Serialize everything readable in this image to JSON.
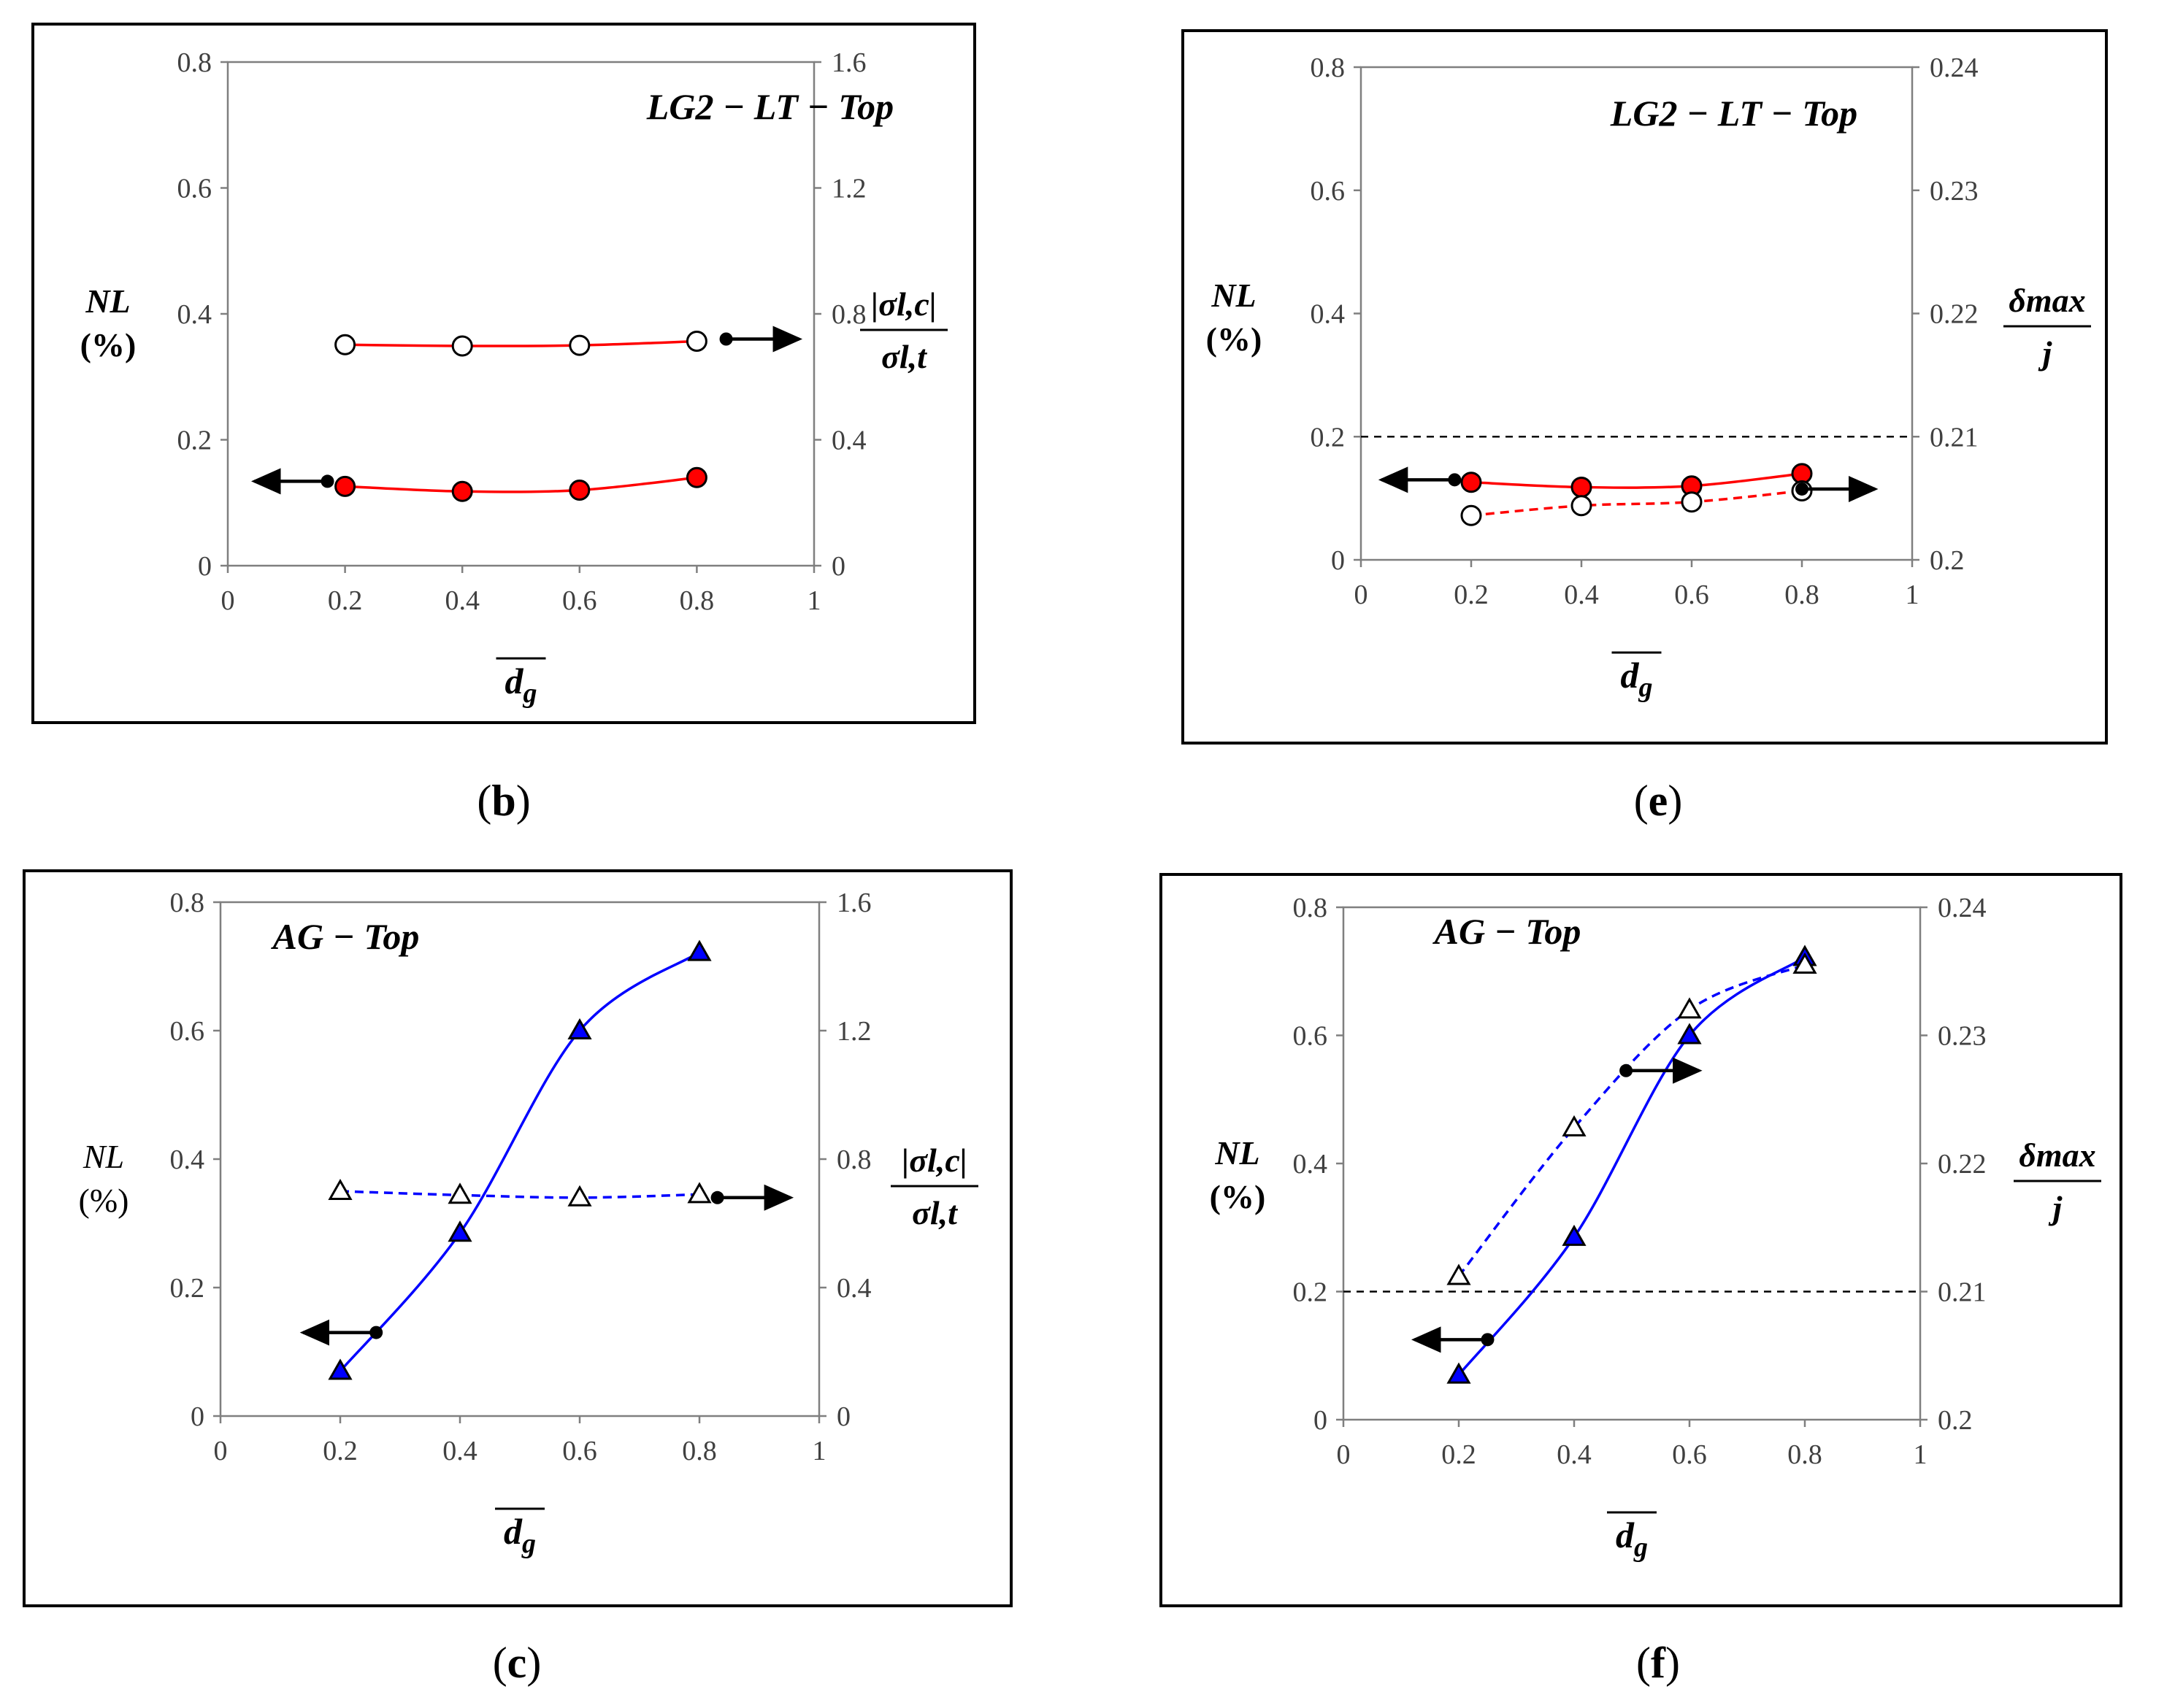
{
  "figure": {
    "panels": [
      "b",
      "e",
      "c",
      "f"
    ]
  },
  "chart_data": [
    {
      "id": "b",
      "type": "line",
      "panel_label": "(b)",
      "title": "LG2 − LT − Top",
      "xlabel": "d_g",
      "ylabel": "NL",
      "ylabel_unit": "(%)",
      "y2label_num": "|σl,c|",
      "y2label_den": "σl,t",
      "xlim": [
        0,
        1
      ],
      "ylim": [
        0,
        0.8
      ],
      "y2lim": [
        0,
        1.6
      ],
      "x_ticks": [
        "0",
        "0.2",
        "0.4",
        "0.6",
        "0.8",
        "1"
      ],
      "y_ticks": [
        "0",
        "0.2",
        "0.4",
        "0.6",
        "0.8"
      ],
      "y2_ticks": [
        "0",
        "0.4",
        "0.8",
        "1.2",
        "1.6"
      ],
      "ref_line": null,
      "series": [
        {
          "name": "NL",
          "axis": "left",
          "x": [
            0.2,
            0.4,
            0.6,
            0.8
          ],
          "values": [
            0.126,
            0.118,
            0.12,
            0.14
          ],
          "color": "#ff0000",
          "marker": "circle-filled",
          "dashed": false
        },
        {
          "name": "|σl,c|/σl,t",
          "axis": "right",
          "x": [
            0.2,
            0.4,
            0.6,
            0.8
          ],
          "values": [
            0.702,
            0.698,
            0.7,
            0.713
          ],
          "color": "#ff0000",
          "marker": "circle-open",
          "dashed": false
        }
      ],
      "arrows": [
        {
          "dir": "left",
          "x": 0.17,
          "y": 0.134
        },
        {
          "dir": "right",
          "x": 0.85,
          "y": 0.36
        }
      ]
    },
    {
      "id": "e",
      "type": "line",
      "panel_label": "(e)",
      "title": "LG2 − LT − Top",
      "xlabel": "d_g",
      "ylabel": "NL",
      "ylabel_unit": "(%)",
      "y2label_num": "δmax",
      "y2label_den": "j",
      "xlim": [
        0,
        1
      ],
      "ylim": [
        0,
        0.8
      ],
      "y2lim": [
        0.2,
        0.24
      ],
      "x_ticks": [
        "0",
        "0.2",
        "0.4",
        "0.6",
        "0.8",
        "1"
      ],
      "y_ticks": [
        "0",
        "0.2",
        "0.4",
        "0.6",
        "0.8"
      ],
      "y2_ticks": [
        "0.2",
        "0.21",
        "0.22",
        "0.23",
        "0.24"
      ],
      "ref_line": 0.2,
      "series": [
        {
          "name": "NL",
          "axis": "left",
          "x": [
            0.2,
            0.4,
            0.6,
            0.8
          ],
          "values": [
            0.126,
            0.118,
            0.12,
            0.14
          ],
          "color": "#ff0000",
          "marker": "circle-filled",
          "dashed": false
        },
        {
          "name": "δmax/j",
          "axis": "right",
          "x": [
            0.2,
            0.4,
            0.6,
            0.8
          ],
          "values": [
            0.2036,
            0.2044,
            0.2047,
            0.2056
          ],
          "color": "#ff0000",
          "marker": "circle-open",
          "dashed": true
        }
      ],
      "arrows": [
        {
          "dir": "left",
          "x": 0.17,
          "y": 0.13
        },
        {
          "dir": "right",
          "x": 0.8,
          "y": 0.115
        }
      ]
    },
    {
      "id": "c",
      "type": "line",
      "panel_label": "(c)",
      "title": "AG − Top",
      "xlabel": "d_g",
      "ylabel": "NL",
      "ylabel_unit": "(%)",
      "y2label_num": "|σl,c|",
      "y2label_den": "σl,t",
      "xlim": [
        0,
        1
      ],
      "ylim": [
        0,
        0.8
      ],
      "y2lim": [
        0,
        1.6
      ],
      "x_ticks": [
        "0",
        "0.2",
        "0.4",
        "0.6",
        "0.8",
        "1"
      ],
      "y_ticks": [
        "0",
        "0.2",
        "0.4",
        "0.6",
        "0.8"
      ],
      "y2_ticks": [
        "0",
        "0.4",
        "0.8",
        "1.2",
        "1.6"
      ],
      "ref_line": null,
      "series": [
        {
          "name": "NL",
          "axis": "left",
          "x": [
            0.2,
            0.4,
            0.6,
            0.8
          ],
          "values": [
            0.07,
            0.285,
            0.6,
            0.722
          ],
          "color": "#0000ff",
          "marker": "triangle-filled",
          "dashed": false
        },
        {
          "name": "|σl,c|/σl,t",
          "axis": "right",
          "x": [
            0.2,
            0.4,
            0.6,
            0.8
          ],
          "values": [
            0.7,
            0.688,
            0.68,
            0.69
          ],
          "color": "#0000ff",
          "marker": "triangle-open",
          "dashed": true
        }
      ],
      "arrows": [
        {
          "dir": "left",
          "x": 0.26,
          "y": 0.13
        },
        {
          "dir": "right",
          "x": 0.83,
          "y": 0.34
        }
      ]
    },
    {
      "id": "f",
      "type": "line",
      "panel_label": "(f)",
      "title": "AG − Top",
      "xlabel": "d_g",
      "ylabel": "NL",
      "ylabel_unit": "(%)",
      "y2label_num": "δmax",
      "y2label_den": "j",
      "xlim": [
        0,
        1
      ],
      "ylim": [
        0,
        0.8
      ],
      "y2lim": [
        0.2,
        0.24
      ],
      "x_ticks": [
        "0",
        "0.2",
        "0.4",
        "0.6",
        "0.8",
        "1"
      ],
      "y_ticks": [
        "0",
        "0.2",
        "0.4",
        "0.6",
        "0.8"
      ],
      "y2_ticks": [
        "0.2",
        "0.21",
        "0.22",
        "0.23",
        "0.24"
      ],
      "ref_line": 0.2,
      "series": [
        {
          "name": "NL",
          "axis": "left",
          "x": [
            0.2,
            0.4,
            0.6,
            0.8
          ],
          "values": [
            0.07,
            0.285,
            0.6,
            0.722
          ],
          "color": "#0000ff",
          "marker": "triangle-filled",
          "dashed": false
        },
        {
          "name": "δmax/j",
          "axis": "right",
          "x": [
            0.2,
            0.4,
            0.6,
            0.8
          ],
          "values": [
            0.2112,
            0.2228,
            0.232,
            0.2355
          ],
          "color": "#0000ff",
          "marker": "triangle-open",
          "dashed": true
        }
      ],
      "arrows": [
        {
          "dir": "left",
          "x": 0.25,
          "y": 0.125
        },
        {
          "dir": "right",
          "x": 0.49,
          "y": 0.545
        }
      ]
    }
  ]
}
